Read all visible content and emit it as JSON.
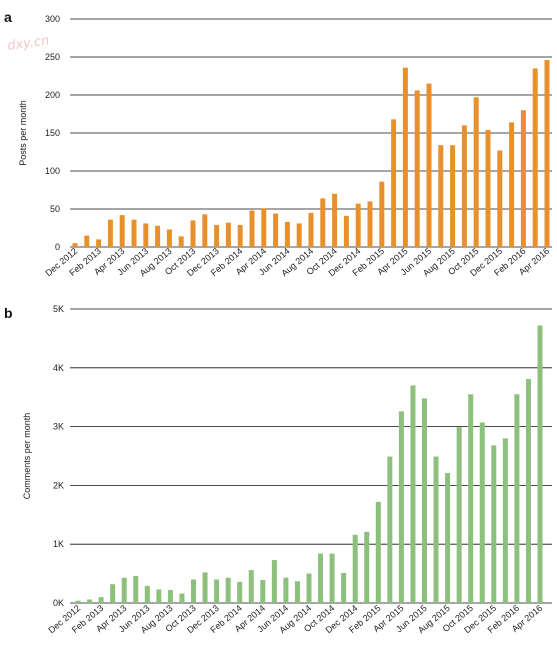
{
  "watermark": "dxy.cn",
  "chart_data": [
    {
      "type": "bar",
      "panel": "a",
      "ylabel": "Posts per month",
      "ylim": [
        0,
        300
      ],
      "yticks": [
        0,
        50,
        100,
        150,
        200,
        250,
        300
      ],
      "ytick_labels": [
        "0",
        "50",
        "100",
        "150",
        "200",
        "250",
        "300"
      ],
      "grid": true,
      "color": "#E8912C",
      "x_tick_labels": [
        "Dec 2012",
        "Feb 2013",
        "Apr 2013",
        "Jun 2013",
        "Aug 2013",
        "Oct 2013",
        "Dec 2013",
        "Feb 2014",
        "Apr 2014",
        "Jun 2014",
        "Aug 2014",
        "Oct 2014",
        "Dec 2014",
        "Feb 2015",
        "Apr 2015",
        "Jun 2015",
        "Aug 2015",
        "Oct 2015",
        "Dec 2015",
        "Feb 2016",
        "Apr 2016"
      ],
      "categories": [
        "Dec 2012",
        "Jan 2013",
        "Feb 2013",
        "Mar 2013",
        "Apr 2013",
        "May 2013",
        "Jun 2013",
        "Jul 2013",
        "Aug 2013",
        "Sep 2013",
        "Oct 2013",
        "Nov 2013",
        "Dec 2013",
        "Jan 2014",
        "Feb 2014",
        "Mar 2014",
        "Apr 2014",
        "May 2014",
        "Jun 2014",
        "Jul 2014",
        "Aug 2014",
        "Sep 2014",
        "Oct 2014",
        "Nov 2014",
        "Dec 2014",
        "Jan 2015",
        "Feb 2015",
        "Mar 2015",
        "Apr 2015",
        "May 2015",
        "Jun 2015",
        "Jul 2015",
        "Aug 2015",
        "Sep 2015",
        "Oct 2015",
        "Nov 2015",
        "Dec 2015",
        "Jan 2016",
        "Feb 2016",
        "Mar 2016",
        "Apr 2016"
      ],
      "values": [
        5,
        15,
        10,
        36,
        42,
        36,
        31,
        28,
        23,
        14,
        35,
        43,
        29,
        32,
        29,
        48,
        51,
        44,
        33,
        31,
        45,
        64,
        70,
        41,
        57,
        60,
        86,
        168,
        236,
        206,
        215,
        134,
        134,
        160,
        197,
        154,
        127,
        164,
        180,
        235,
        246
      ]
    },
    {
      "type": "bar",
      "panel": "b",
      "ylabel": "Comments per month",
      "ylim": [
        0,
        5000
      ],
      "yticks": [
        0,
        1000,
        2000,
        3000,
        4000,
        5000
      ],
      "ytick_labels": [
        "0K",
        "1K",
        "2K",
        "3K",
        "4K",
        "5K"
      ],
      "grid": true,
      "color": "#8CC07C",
      "x_tick_labels": [
        "Dec 2012",
        "Feb 2013",
        "Apr 2013",
        "Jun 2013",
        "Aug 2013",
        "Oct 2013",
        "Dec 2013",
        "Feb 2014",
        "Apr 2014",
        "Jun 2014",
        "Aug 2014",
        "Oct 2014",
        "Dec 2014",
        "Feb 2015",
        "Apr 2015",
        "Jun 2015",
        "Aug 2015",
        "Oct 2015",
        "Dec 2015",
        "Feb 2016",
        "Apr 2016"
      ],
      "categories": [
        "Dec 2012",
        "Jan 2013",
        "Feb 2013",
        "Mar 2013",
        "Apr 2013",
        "May 2013",
        "Jun 2013",
        "Jul 2013",
        "Aug 2013",
        "Sep 2013",
        "Oct 2013",
        "Nov 2013",
        "Dec 2013",
        "Jan 2014",
        "Feb 2014",
        "Mar 2014",
        "Apr 2014",
        "May 2014",
        "Jun 2014",
        "Jul 2014",
        "Aug 2014",
        "Sep 2014",
        "Oct 2014",
        "Nov 2014",
        "Dec 2014",
        "Jan 2015",
        "Feb 2015",
        "Mar 2015",
        "Apr 2015",
        "May 2015",
        "Jun 2015",
        "Jul 2015",
        "Aug 2015",
        "Sep 2015",
        "Oct 2015",
        "Nov 2015",
        "Dec 2015",
        "Jan 2016",
        "Feb 2016",
        "Mar 2016",
        "Apr 2016"
      ],
      "values": [
        40,
        60,
        100,
        320,
        430,
        460,
        290,
        230,
        220,
        160,
        400,
        520,
        400,
        430,
        360,
        560,
        390,
        730,
        430,
        370,
        500,
        840,
        840,
        510,
        1160,
        1210,
        1720,
        2490,
        3260,
        3700,
        3480,
        2490,
        2210,
        2990,
        3550,
        3070,
        2680,
        2800,
        3550,
        3810,
        4720
      ]
    }
  ]
}
